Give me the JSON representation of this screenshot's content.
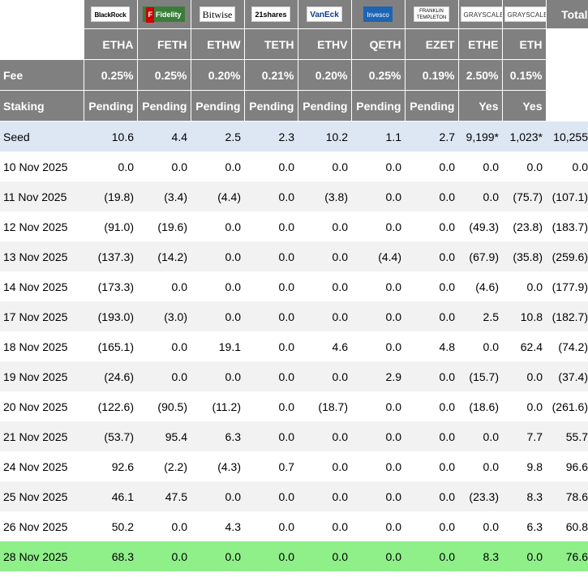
{
  "logos": {
    "blackrock": "BlackRock",
    "fidelity": "Fidelity",
    "bitwise": "Bitwise",
    "shares21": "21shares",
    "vaneck": "VanEck",
    "invesco": "Invesco",
    "franklin_line1": "FRANKLIN",
    "franklin_line2": "TEMPLETON",
    "grayscale1": "GRAYSCALE",
    "grayscale2": "GRAYSCALE",
    "total": "Total"
  },
  "tickers": [
    "ETHA",
    "FETH",
    "ETHW",
    "TETH",
    "ETHV",
    "QETH",
    "EZET",
    "ETHE",
    "ETH"
  ],
  "fee": {
    "label": "Fee",
    "values": [
      "0.25%",
      "0.25%",
      "0.20%",
      "0.21%",
      "0.20%",
      "0.25%",
      "0.19%",
      "2.50%",
      "0.15%"
    ]
  },
  "staking": {
    "label": "Staking",
    "values": [
      "Pending",
      "Pending",
      "Pending",
      "Pending",
      "Pending",
      "Pending",
      "Pending",
      "Yes",
      "Yes"
    ]
  },
  "rows": [
    {
      "label": "Seed",
      "values": [
        "10.6",
        "4.4",
        "2.5",
        "2.3",
        "10.2",
        "1.1",
        "2.7",
        "9,199*",
        "1,023*",
        "10,255"
      ]
    },
    {
      "label": "10 Nov 2025",
      "values": [
        "0.0",
        "0.0",
        "0.0",
        "0.0",
        "0.0",
        "0.0",
        "0.0",
        "0.0",
        "0.0",
        "0.0"
      ]
    },
    {
      "label": "11 Nov 2025",
      "values": [
        "(19.8)",
        "(3.4)",
        "(4.4)",
        "0.0",
        "(3.8)",
        "0.0",
        "0.0",
        "0.0",
        "(75.7)",
        "(107.1)"
      ]
    },
    {
      "label": "12 Nov 2025",
      "values": [
        "(91.0)",
        "(19.6)",
        "0.0",
        "0.0",
        "0.0",
        "0.0",
        "0.0",
        "(49.3)",
        "(23.8)",
        "(183.7)"
      ]
    },
    {
      "label": "13 Nov 2025",
      "values": [
        "(137.3)",
        "(14.2)",
        "0.0",
        "0.0",
        "0.0",
        "(4.4)",
        "0.0",
        "(67.9)",
        "(35.8)",
        "(259.6)"
      ]
    },
    {
      "label": "14 Nov 2025",
      "values": [
        "(173.3)",
        "0.0",
        "0.0",
        "0.0",
        "0.0",
        "0.0",
        "0.0",
        "(4.6)",
        "0.0",
        "(177.9)"
      ]
    },
    {
      "label": "17 Nov 2025",
      "values": [
        "(193.0)",
        "(3.0)",
        "0.0",
        "0.0",
        "0.0",
        "0.0",
        "0.0",
        "2.5",
        "10.8",
        "(182.7)"
      ]
    },
    {
      "label": "18 Nov 2025",
      "values": [
        "(165.1)",
        "0.0",
        "19.1",
        "0.0",
        "4.6",
        "0.0",
        "4.8",
        "0.0",
        "62.4",
        "(74.2)"
      ]
    },
    {
      "label": "19 Nov 2025",
      "values": [
        "(24.6)",
        "0.0",
        "0.0",
        "0.0",
        "0.0",
        "2.9",
        "0.0",
        "(15.7)",
        "0.0",
        "(37.4)"
      ]
    },
    {
      "label": "20 Nov 2025",
      "values": [
        "(122.6)",
        "(90.5)",
        "(11.2)",
        "0.0",
        "(18.7)",
        "0.0",
        "0.0",
        "(18.6)",
        "0.0",
        "(261.6)"
      ]
    },
    {
      "label": "21 Nov 2025",
      "values": [
        "(53.7)",
        "95.4",
        "6.3",
        "0.0",
        "0.0",
        "0.0",
        "0.0",
        "0.0",
        "7.7",
        "55.7"
      ]
    },
    {
      "label": "24 Nov 2025",
      "values": [
        "92.6",
        "(2.2)",
        "(4.3)",
        "0.7",
        "0.0",
        "0.0",
        "0.0",
        "0.0",
        "9.8",
        "96.6"
      ]
    },
    {
      "label": "25 Nov 2025",
      "values": [
        "46.1",
        "47.5",
        "0.0",
        "0.0",
        "0.0",
        "0.0",
        "0.0",
        "(23.3)",
        "8.3",
        "78.6"
      ]
    },
    {
      "label": "26 Nov 2025",
      "values": [
        "50.2",
        "0.0",
        "4.3",
        "0.0",
        "0.0",
        "0.0",
        "0.0",
        "0.0",
        "6.3",
        "60.8"
      ]
    },
    {
      "label": "28 Nov 2025",
      "values": [
        "68.3",
        "0.0",
        "0.0",
        "0.0",
        "0.0",
        "0.0",
        "0.0",
        "8.3",
        "0.0",
        "76.6"
      ]
    }
  ],
  "colors": {
    "header_bg": "#808080",
    "negative": "#e02020",
    "seed_row_bg": "#dde6f3",
    "alt_row_bg": "#f2f2f2",
    "latest_row_bg": "#8ff08a"
  }
}
